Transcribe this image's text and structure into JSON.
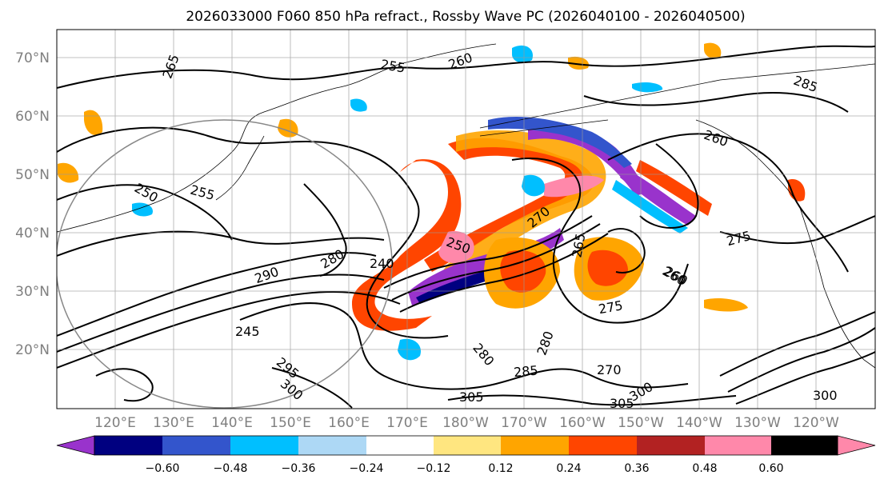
{
  "title": "2026033000 F060 850 hPa refract., Rossby Wave PC (2026040100 - 2026040500)",
  "lat_labels": [
    "70°N",
    "60°N",
    "50°N",
    "40°N",
    "30°N",
    "20°N"
  ],
  "lon_labels": [
    "120°E",
    "130°E",
    "140°E",
    "150°E",
    "160°E",
    "170°E",
    "180°W",
    "170°W",
    "160°W",
    "150°W",
    "140°W",
    "130°W",
    "120°W"
  ],
  "colorbar": {
    "ticks": [
      "−0.60",
      "−0.48",
      "−0.36",
      "−0.24",
      "−0.12",
      "0.12",
      "0.24",
      "0.36",
      "0.48",
      "0.60"
    ],
    "colors": [
      "#9933cc",
      "#000080",
      "#3355cc",
      "#00bfff",
      "#add8f5",
      "#ffffff",
      "#ffe680",
      "#ffa500",
      "#ff4500",
      "#b22222",
      "#ff88aa"
    ]
  },
  "contour_labels": [
    "265",
    "255",
    "260",
    "285",
    "260",
    "250",
    "255",
    "270",
    "240",
    "250",
    "265",
    "275",
    "275",
    "260",
    "280",
    "290",
    "295",
    "300",
    "305",
    "285",
    "280",
    "270",
    "300",
    "305",
    "300",
    "280",
    "245",
    "260"
  ]
}
